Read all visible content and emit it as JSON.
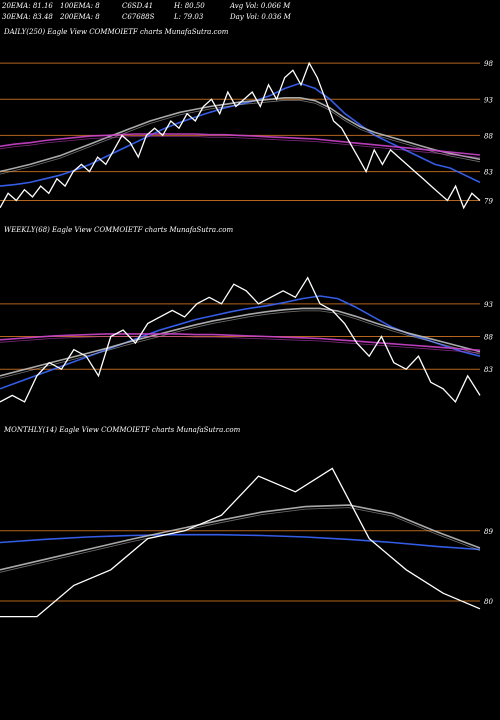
{
  "header": {
    "row1": [
      "20EMA: 81.16",
      "100EMA: 8",
      "C6SD.41",
      "H: 80.50",
      "Avg Vol: 0.066  M"
    ],
    "row2": [
      "30EMA: 83.48",
      "200EMA: 8",
      "C67688S",
      "L: 79.03",
      "Day Vol: 0.036  M"
    ]
  },
  "panels": [
    {
      "title": "DAILY(250) Eagle   View  COMMOIETF charts MunafaSutra.com"
    },
    {
      "title": "WEEKLY(68) Eagle   View  COMMOIETF charts MunafaSutra.com"
    },
    {
      "title": "MONTHLY(14) Eagle   View  COMMOIETF charts MunafaSutra.com"
    }
  ],
  "colors": {
    "background": "#000000",
    "price": "#ffffff",
    "ema_fast": "#3a66ff",
    "ema_slow": "#bbbbbb",
    "ema_long": "#cc44cc",
    "hline": "#b5651d"
  },
  "chart_data": [
    {
      "type": "line",
      "name": "daily",
      "ylim": [
        77,
        100.5
      ],
      "yticks": [
        98,
        93,
        88,
        83,
        79
      ],
      "hlines": [
        98,
        93,
        88,
        83,
        79
      ],
      "price": [
        78,
        80,
        79,
        80.5,
        79.5,
        81,
        80,
        82,
        81,
        83,
        84,
        83,
        85,
        84,
        86,
        88,
        87,
        85,
        88,
        89,
        88,
        90,
        89,
        91,
        90,
        92,
        93,
        91,
        94,
        92,
        93,
        94,
        92,
        95,
        93,
        96,
        97,
        95,
        98,
        96,
        93,
        90,
        89,
        87,
        85,
        83,
        86,
        84,
        86,
        85,
        84,
        83,
        82,
        81,
        80,
        79,
        81,
        78,
        80,
        79
      ],
      "series": [
        {
          "name": "",
          "color": "ema_fast",
          "values": [
            81,
            81.2,
            81.5,
            82,
            82.5,
            83.2,
            84,
            85,
            86,
            87,
            88,
            89,
            89.8,
            90.5,
            91.2,
            91.8,
            92.3,
            92.8,
            93.5,
            94.5,
            95.2,
            94.5,
            93,
            91,
            89.5,
            88,
            87,
            86,
            85,
            84,
            83.5,
            82.5,
            81.5
          ]
        },
        {
          "name": "",
          "color": "ema_slow",
          "values": [
            83,
            83.5,
            84,
            84.6,
            85.2,
            86,
            86.8,
            87.6,
            88.4,
            89.2,
            90,
            90.6,
            91.2,
            91.6,
            92,
            92.3,
            92.6,
            92.8,
            93,
            93.2,
            93.2,
            92.8,
            91.8,
            90.4,
            89.2,
            88.4,
            87.8,
            87.2,
            86.6,
            86,
            85.5,
            85.1,
            84.7
          ]
        },
        {
          "name": "",
          "color": "ema_long",
          "values": [
            86.5,
            86.8,
            87,
            87.3,
            87.5,
            87.7,
            87.9,
            88,
            88.1,
            88.2,
            88.2,
            88.2,
            88.2,
            88.2,
            88.1,
            88.1,
            88,
            87.9,
            87.8,
            87.7,
            87.6,
            87.5,
            87.3,
            87.1,
            86.9,
            86.7,
            86.5,
            86.3,
            86.1,
            85.9,
            85.7,
            85.5,
            85.3
          ]
        }
      ]
    },
    {
      "type": "line",
      "name": "weekly",
      "ylim": [
        76,
        102
      ],
      "yticks": [
        93,
        88,
        83
      ],
      "hlines": [
        93,
        88,
        83
      ],
      "price": [
        78,
        79,
        78,
        82,
        84,
        83,
        86,
        85,
        82,
        88,
        89,
        87,
        90,
        91,
        92,
        91,
        93,
        94,
        93,
        96,
        95,
        93,
        94,
        95,
        94,
        97,
        93,
        92,
        90,
        87,
        85,
        88,
        84,
        83,
        85,
        81,
        80,
        78,
        82,
        79
      ],
      "series": [
        {
          "name": "",
          "color": "ema_fast",
          "values": [
            80,
            81,
            82,
            83,
            84,
            85,
            86,
            87,
            88,
            89,
            89.8,
            90.6,
            91.2,
            91.8,
            92.3,
            92.7,
            93.2,
            93.8,
            94.2,
            93.8,
            92.5,
            91,
            89.5,
            88.4,
            87.5,
            86.6,
            85.7,
            85
          ]
        },
        {
          "name": "",
          "color": "ema_slow",
          "values": [
            82,
            82.7,
            83.4,
            84.1,
            84.8,
            85.5,
            86.2,
            87,
            87.7,
            88.4,
            89.1,
            89.8,
            90.4,
            90.9,
            91.4,
            91.8,
            92.1,
            92.3,
            92.3,
            91.9,
            91.1,
            90.2,
            89.3,
            88.5,
            87.8,
            87.1,
            86.4,
            85.7
          ]
        },
        {
          "name": "",
          "color": "ema_long",
          "values": [
            87.5,
            87.7,
            87.9,
            88.1,
            88.2,
            88.3,
            88.4,
            88.4,
            88.4,
            88.4,
            88.4,
            88.3,
            88.3,
            88.2,
            88.1,
            88,
            87.9,
            87.8,
            87.7,
            87.5,
            87.3,
            87.1,
            86.9,
            86.7,
            86.5,
            86.3,
            86.1,
            85.9
          ]
        }
      ]
    },
    {
      "type": "line",
      "name": "monthly",
      "ylim": [
        75,
        100
      ],
      "yticks": [
        89,
        80
      ],
      "hlines": [
        89,
        80
      ],
      "price": [
        78,
        78,
        82,
        84,
        88,
        89,
        91,
        96,
        94,
        97,
        88,
        84,
        81,
        79
      ],
      "series": [
        {
          "name": "",
          "color": "ema_fast",
          "values": [
            87.5,
            87.9,
            88.2,
            88.4,
            88.5,
            88.5,
            88.4,
            88.2,
            87.9,
            87.5,
            87,
            86.6
          ]
        },
        {
          "name": "",
          "color": "ema_slow",
          "values": [
            84,
            85.3,
            86.6,
            87.9,
            89.1,
            90.3,
            91.4,
            92.1,
            92.3,
            91.2,
            88.9,
            86.8
          ]
        }
      ]
    }
  ]
}
